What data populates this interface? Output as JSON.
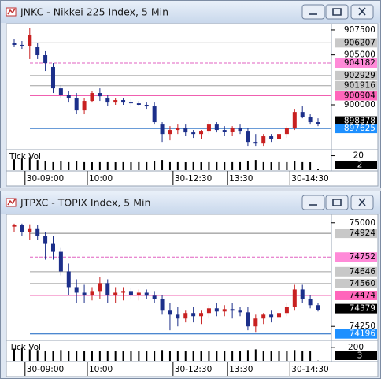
{
  "chart_data": [
    {
      "type": "candlestick",
      "title": "JNKC - Nikkei 225 Index, 5 Min",
      "volume_title": "Tick Vol",
      "up_color": "#c82020",
      "down_color": "#1c2f8a",
      "volume_color": "#000000",
      "categories": [
        null,
        null,
        "30-09:00",
        null,
        null,
        null,
        null,
        null,
        null,
        null,
        "10:00",
        null,
        null,
        null,
        null,
        null,
        null,
        null,
        null,
        null,
        null,
        "30-12:30",
        null,
        null,
        null,
        null,
        null,
        null,
        "13:30",
        null,
        null,
        null,
        null,
        null,
        null,
        null,
        "30-14:30",
        null,
        null,
        null
      ],
      "open": [
        906160,
        906000,
        905920,
        905760,
        904970,
        903790,
        901650,
        901020,
        900630,
        899440,
        900390,
        901180,
        900630,
        900230,
        900470,
        900230,
        900150,
        900000,
        899840,
        898020,
        897070,
        897470,
        897700,
        897230,
        897070,
        897390,
        898020,
        897470,
        897310,
        897700,
        897390,
        896280,
        896120,
        896840,
        896600,
        897070,
        897700,
        899280,
        898810,
        898260
      ],
      "high": [
        906550,
        906390,
        907660,
        906160,
        905370,
        904180,
        901970,
        901420,
        901180,
        900630,
        901420,
        901650,
        901020,
        900710,
        900710,
        900550,
        900390,
        900230,
        900230,
        898260,
        897860,
        898020,
        898020,
        897470,
        897470,
        898490,
        898260,
        897860,
        897860,
        898020,
        897700,
        897070,
        897070,
        897070,
        897230,
        897860,
        899600,
        899840,
        899050,
        898650
      ],
      "low": [
        905760,
        905600,
        904580,
        904580,
        903390,
        901180,
        900630,
        900230,
        899050,
        899050,
        900230,
        900390,
        899840,
        900000,
        900000,
        899760,
        899840,
        899600,
        898020,
        896280,
        896440,
        897070,
        896910,
        896680,
        896600,
        897070,
        897230,
        896910,
        896910,
        897070,
        895890,
        895890,
        895890,
        896280,
        896280,
        896680,
        897470,
        898650,
        898020,
        897860
      ],
      "close": [
        906000,
        905920,
        906950,
        904970,
        904180,
        901650,
        901020,
        900630,
        899440,
        900390,
        901180,
        900860,
        900230,
        900470,
        900230,
        900150,
        900000,
        899840,
        898260,
        897070,
        897470,
        897700,
        897230,
        897070,
        897390,
        898020,
        897470,
        897310,
        897630,
        897390,
        896280,
        896120,
        896840,
        896600,
        897070,
        897700,
        899280,
        898810,
        898260,
        898100
      ],
      "volume": [
        15,
        16,
        18,
        14,
        13,
        12,
        13,
        12,
        13,
        12,
        11,
        12,
        12,
        11,
        12,
        11,
        12,
        12,
        13,
        14,
        12,
        12,
        11,
        12,
        11,
        12,
        12,
        11,
        12,
        12,
        13,
        14,
        12,
        11,
        12,
        12,
        13,
        12,
        11,
        2
      ],
      "ylim": [
        895660,
        907970
      ],
      "yticks": [
        907500,
        905000,
        900000
      ],
      "volume_ylim": [
        0,
        26
      ],
      "volume_yticks": [
        20
      ],
      "levels": [
        {
          "value": 906207,
          "color": "#c8c8c8",
          "text_color": "#000000",
          "line_color": "#808080",
          "line_style": "solid"
        },
        {
          "value": 904182,
          "color": "#ff8ad8",
          "text_color": "#000000",
          "line_color": "#e060c0",
          "line_style": "dashed"
        },
        {
          "value": 902929,
          "color": "#c8c8c8",
          "text_color": "#000000",
          "line_color": "#a0a0a0",
          "line_style": "solid"
        },
        {
          "value": 901916,
          "color": "#c8c8c8",
          "text_color": "#000000",
          "line_color": "#a0a0a0",
          "line_style": "solid"
        },
        {
          "value": 900904,
          "color": "#ff66bb",
          "text_color": "#000000",
          "line_color": "#f060b0",
          "line_style": "solid"
        },
        {
          "value": 898378,
          "color": "#000000",
          "text_color": "#ffffff",
          "line_color": "#000000",
          "line_style": "none"
        },
        {
          "value": 897625,
          "color": "#1e90ff",
          "text_color": "#ffffff",
          "line_color": "#1060c0",
          "line_style": "solid"
        }
      ]
    },
    {
      "type": "candlestick",
      "title": "JTPXC - TOPIX Index, 5 Min",
      "volume_title": "Tick Vol",
      "up_color": "#c82020",
      "down_color": "#1c2f8a",
      "volume_color": "#000000",
      "categories": [
        null,
        null,
        "30-09:00",
        null,
        null,
        null,
        null,
        null,
        null,
        null,
        "10:00",
        null,
        null,
        null,
        null,
        null,
        null,
        null,
        null,
        null,
        null,
        "30-12:30",
        null,
        null,
        null,
        null,
        null,
        null,
        "13:30",
        null,
        null,
        null,
        null,
        null,
        null,
        null,
        "30-14:30",
        null,
        null,
        null
      ],
      "open": [
        74972,
        74983,
        74932,
        74960,
        74903,
        74847,
        74790,
        74648,
        74534,
        74494,
        74477,
        74506,
        74563,
        74477,
        74494,
        74506,
        74477,
        74494,
        74472,
        74449,
        74364,
        74335,
        74307,
        74347,
        74324,
        74347,
        74381,
        74358,
        74375,
        74364,
        74352,
        74250,
        74307,
        74335,
        74318,
        74347,
        74392,
        74517,
        74449,
        74404
      ],
      "high": [
        74994,
        74994,
        74989,
        74983,
        74932,
        74903,
        74818,
        74705,
        74591,
        74551,
        74534,
        74608,
        74591,
        74534,
        74534,
        74529,
        74517,
        74517,
        74506,
        74477,
        74421,
        74392,
        74364,
        74392,
        74364,
        74404,
        74421,
        74404,
        74421,
        74392,
        74392,
        74335,
        74347,
        74364,
        74364,
        74421,
        74551,
        74551,
        74477,
        74421
      ],
      "low": [
        74932,
        74903,
        74875,
        74875,
        74733,
        74733,
        74619,
        74477,
        74421,
        74421,
        74438,
        74449,
        74421,
        74421,
        74438,
        74449,
        74438,
        74449,
        74421,
        74335,
        74222,
        74250,
        74279,
        74279,
        74267,
        74307,
        74324,
        74324,
        74307,
        74324,
        74222,
        74210,
        74267,
        74279,
        74290,
        74324,
        74364,
        74421,
        74381,
        74358
      ],
      "close": [
        74983,
        74932,
        74960,
        74903,
        74847,
        74790,
        74648,
        74534,
        74494,
        74477,
        74506,
        74563,
        74477,
        74494,
        74506,
        74477,
        74494,
        74472,
        74449,
        74364,
        74335,
        74307,
        74347,
        74324,
        74347,
        74381,
        74358,
        74375,
        74364,
        74352,
        74250,
        74307,
        74335,
        74318,
        74347,
        74392,
        74517,
        74449,
        74404,
        74370
      ],
      "volume": [
        180,
        190,
        170,
        160,
        150,
        150,
        160,
        150,
        140,
        150,
        140,
        150,
        140,
        140,
        150,
        140,
        140,
        150,
        150,
        160,
        150,
        140,
        140,
        150,
        140,
        140,
        150,
        140,
        140,
        150,
        160,
        170,
        150,
        140,
        140,
        150,
        160,
        150,
        140,
        3
      ],
      "ylim": [
        74160,
        75050
      ],
      "yticks": [
        75000,
        74250
      ],
      "volume_ylim": [
        0,
        280
      ],
      "volume_yticks": [
        200
      ],
      "levels": [
        {
          "value": 74924,
          "color": "#c8c8c8",
          "text_color": "#000000",
          "line_color": "#808080",
          "line_style": "solid"
        },
        {
          "value": 74752,
          "color": "#ff8ad8",
          "text_color": "#000000",
          "line_color": "#e060c0",
          "line_style": "dashed"
        },
        {
          "value": 74646,
          "color": "#c8c8c8",
          "text_color": "#000000",
          "line_color": "#a0a0a0",
          "line_style": "solid"
        },
        {
          "value": 74560,
          "color": "#c8c8c8",
          "text_color": "#000000",
          "line_color": "#a0a0a0",
          "line_style": "solid"
        },
        {
          "value": 74474,
          "color": "#ff66bb",
          "text_color": "#000000",
          "line_color": "#f060b0",
          "line_style": "solid"
        },
        {
          "value": 74379,
          "color": "#000000",
          "text_color": "#ffffff",
          "line_color": "#000000",
          "line_style": "none"
        },
        {
          "value": 74196,
          "color": "#1e90ff",
          "text_color": "#ffffff",
          "line_color": "#1060c0",
          "line_style": "solid"
        }
      ]
    }
  ]
}
